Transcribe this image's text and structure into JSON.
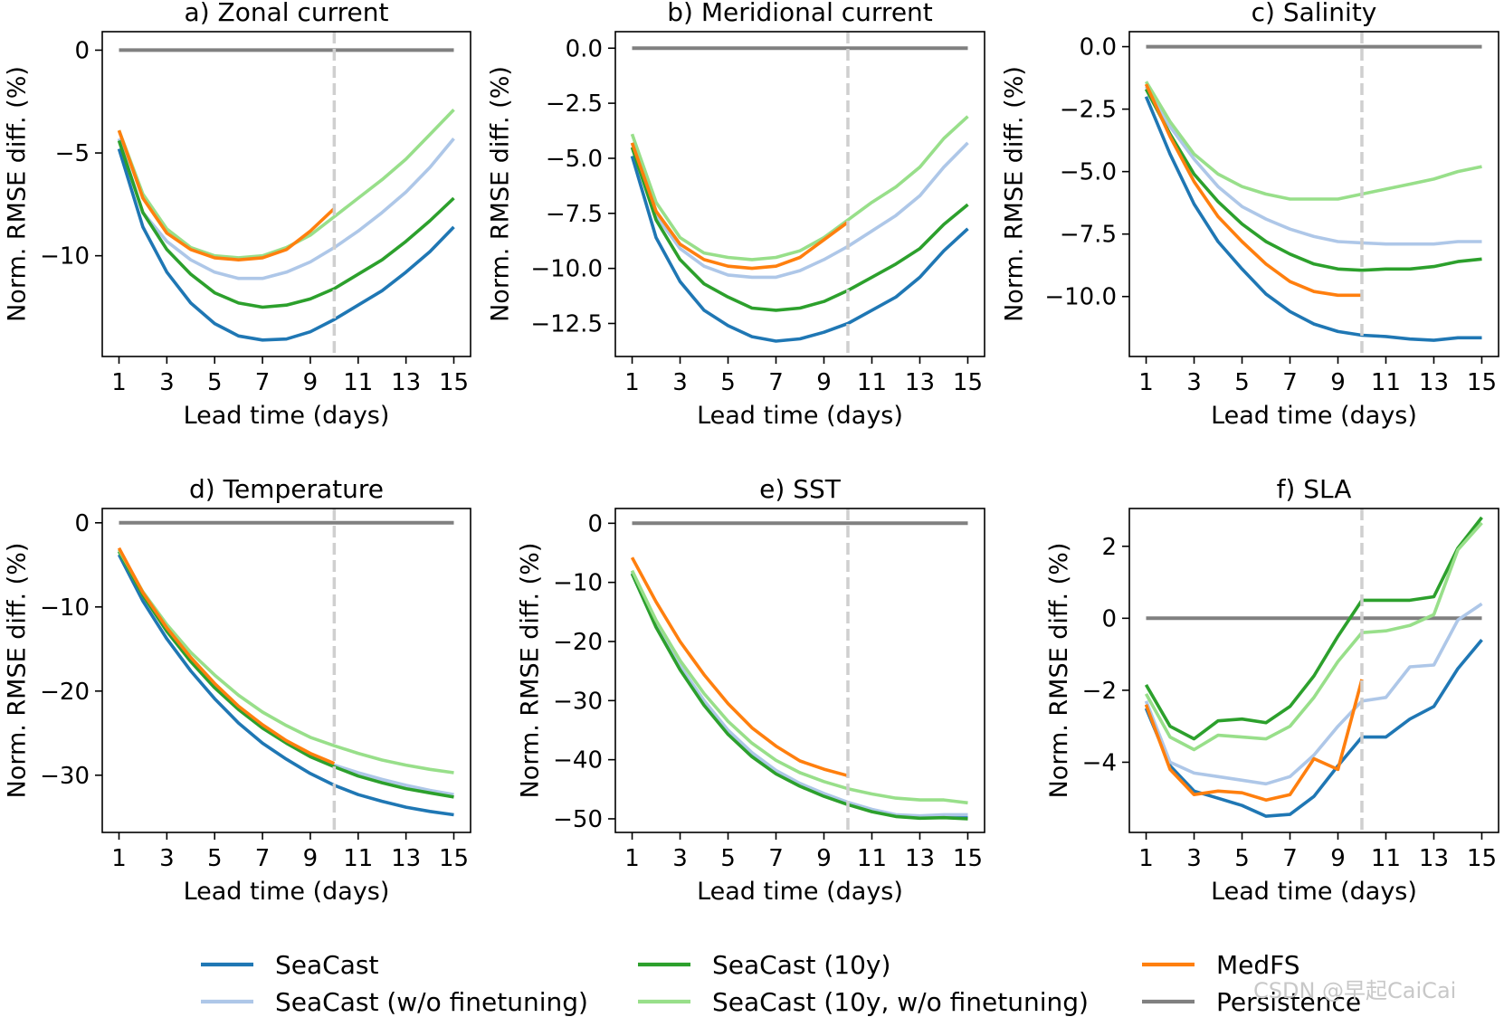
{
  "chart_data": {
    "type": "line",
    "x": [
      1,
      2,
      3,
      4,
      5,
      6,
      7,
      8,
      9,
      10,
      11,
      12,
      13,
      14,
      15
    ],
    "xlabel": "Lead time (days)",
    "ylabel": "Norm. RMSE diff. (%)",
    "xticks": [
      1,
      3,
      5,
      7,
      9,
      11,
      13,
      15
    ],
    "xlim": [
      0.3,
      15.7
    ],
    "vline_x": 10,
    "series_styles": {
      "seacast": {
        "name": "SeaCast",
        "color": "#1f77b4"
      },
      "seacast_wof": {
        "name": "SeaCast (w/o finetuning)",
        "color": "#aec7e8"
      },
      "seacast10y": {
        "name": "SeaCast (10y)",
        "color": "#2ca02c"
      },
      "seacast10y_wof": {
        "name": "SeaCast (10y, w/o finetuning)",
        "color": "#98df8a"
      },
      "medfs": {
        "name": "MedFS",
        "color": "#ff7f0e"
      },
      "persistence": {
        "name": "Persistence",
        "color": "#808080"
      }
    },
    "legend_order": [
      "seacast",
      "seacast_wof",
      "seacast10y",
      "seacast10y_wof",
      "medfs",
      "persistence"
    ],
    "panels": [
      {
        "title": "a) Zonal current",
        "ylim": [
          -14.9,
          0.9
        ],
        "yticks": [
          0,
          -5,
          -10
        ],
        "ytick_labels": [
          "0",
          "−5",
          "−10"
        ],
        "series": {
          "persistence": [
            0,
            0,
            0,
            0,
            0,
            0,
            0,
            0,
            0,
            0,
            0,
            0,
            0,
            0,
            0
          ],
          "seacast": [
            -4.8,
            -8.6,
            -10.8,
            -12.3,
            -13.3,
            -13.9,
            -14.1,
            -14.05,
            -13.7,
            -13.1,
            -12.4,
            -11.7,
            -10.8,
            -9.8,
            -8.6
          ],
          "seacast_wof": [
            -4.3,
            -7.9,
            -9.3,
            -10.2,
            -10.8,
            -11.1,
            -11.1,
            -10.8,
            -10.3,
            -9.6,
            -8.8,
            -7.9,
            -6.9,
            -5.7,
            -4.3
          ],
          "seacast10y": [
            -4.4,
            -7.9,
            -9.7,
            -10.9,
            -11.8,
            -12.3,
            -12.5,
            -12.4,
            -12.1,
            -11.6,
            -10.9,
            -10.2,
            -9.3,
            -8.3,
            -7.2
          ],
          "seacast10y_wof": [
            -3.9,
            -7.0,
            -8.7,
            -9.6,
            -10.0,
            -10.1,
            -10.0,
            -9.6,
            -9.0,
            -8.1,
            -7.2,
            -6.3,
            -5.3,
            -4.1,
            -2.9
          ],
          "medfs": [
            -3.9,
            -7.2,
            -8.9,
            -9.7,
            -10.1,
            -10.2,
            -10.1,
            -9.7,
            -8.8,
            -7.7
          ]
        }
      },
      {
        "title": "b) Meridional current",
        "ylim": [
          -14.0,
          0.75
        ],
        "yticks": [
          0,
          -2.5,
          -5,
          -7.5,
          -10,
          -12.5
        ],
        "ytick_labels": [
          "0.0",
          "−2.5",
          "−5.0",
          "−7.5",
          "−10.0",
          "−12.5"
        ],
        "series": {
          "persistence": [
            0,
            0,
            0,
            0,
            0,
            0,
            0,
            0,
            0,
            0,
            0,
            0,
            0,
            0,
            0
          ],
          "seacast": [
            -4.9,
            -8.6,
            -10.6,
            -11.9,
            -12.6,
            -13.1,
            -13.3,
            -13.2,
            -12.9,
            -12.5,
            -11.9,
            -11.3,
            -10.4,
            -9.2,
            -8.2
          ],
          "seacast_wof": [
            -4.3,
            -7.6,
            -9.1,
            -9.9,
            -10.3,
            -10.4,
            -10.4,
            -10.1,
            -9.6,
            -9.0,
            -8.3,
            -7.6,
            -6.7,
            -5.4,
            -4.3
          ],
          "seacast10y": [
            -4.5,
            -7.8,
            -9.6,
            -10.7,
            -11.3,
            -11.8,
            -11.9,
            -11.8,
            -11.5,
            -11.0,
            -10.4,
            -9.8,
            -9.1,
            -8.0,
            -7.1
          ],
          "seacast10y_wof": [
            -3.9,
            -7.0,
            -8.6,
            -9.3,
            -9.5,
            -9.6,
            -9.5,
            -9.2,
            -8.6,
            -7.8,
            -7.0,
            -6.3,
            -5.4,
            -4.1,
            -3.1
          ],
          "medfs": [
            -4.3,
            -7.4,
            -8.9,
            -9.6,
            -9.9,
            -10.0,
            -9.9,
            -9.5,
            -8.7,
            -7.9
          ]
        }
      },
      {
        "title": "c) Salinity",
        "ylim": [
          -12.4,
          0.6
        ],
        "yticks": [
          0,
          -2.5,
          -5,
          -7.5,
          -10
        ],
        "ytick_labels": [
          "0.0",
          "−2.5",
          "−5.0",
          "−7.5",
          "−10.0"
        ],
        "series": {
          "persistence": [
            0,
            0,
            0,
            0,
            0,
            0,
            0,
            0,
            0,
            0,
            0,
            0,
            0,
            0,
            0
          ],
          "seacast": [
            -2.0,
            -4.3,
            -6.3,
            -7.8,
            -8.9,
            -9.9,
            -10.6,
            -11.1,
            -11.4,
            -11.55,
            -11.6,
            -11.7,
            -11.75,
            -11.65,
            -11.65
          ],
          "seacast_wof": [
            -1.6,
            -3.2,
            -4.5,
            -5.6,
            -6.4,
            -6.9,
            -7.3,
            -7.6,
            -7.8,
            -7.85,
            -7.9,
            -7.9,
            -7.9,
            -7.8,
            -7.8
          ],
          "seacast10y": [
            -1.7,
            -3.5,
            -5.1,
            -6.2,
            -7.1,
            -7.8,
            -8.3,
            -8.7,
            -8.9,
            -8.95,
            -8.9,
            -8.9,
            -8.8,
            -8.6,
            -8.5
          ],
          "seacast10y_wof": [
            -1.4,
            -3.0,
            -4.3,
            -5.1,
            -5.6,
            -5.9,
            -6.1,
            -6.1,
            -6.1,
            -5.9,
            -5.7,
            -5.5,
            -5.3,
            -5.0,
            -4.8
          ],
          "medfs": [
            -1.5,
            -3.6,
            -5.4,
            -6.8,
            -7.8,
            -8.7,
            -9.4,
            -9.8,
            -9.95,
            -9.95
          ]
        }
      },
      {
        "title": "d) Temperature",
        "ylim": [
          -36.8,
          1.7
        ],
        "yticks": [
          0,
          -10,
          -20,
          -30
        ],
        "ytick_labels": [
          "0",
          "−10",
          "−20",
          "−30"
        ],
        "series": {
          "persistence": [
            0,
            0,
            0,
            0,
            0,
            0,
            0,
            0,
            0,
            0,
            0,
            0,
            0,
            0,
            0
          ],
          "seacast": [
            -3.8,
            -9.3,
            -13.8,
            -17.6,
            -20.9,
            -23.8,
            -26.2,
            -28.1,
            -29.8,
            -31.2,
            -32.3,
            -33.1,
            -33.8,
            -34.3,
            -34.7
          ],
          "seacast_wof": [
            -3.4,
            -8.6,
            -12.9,
            -16.4,
            -19.4,
            -22.0,
            -24.2,
            -26.0,
            -27.5,
            -28.8,
            -29.7,
            -30.5,
            -31.2,
            -31.8,
            -32.3
          ],
          "seacast10y": [
            -3.4,
            -8.6,
            -12.9,
            -16.5,
            -19.6,
            -22.2,
            -24.4,
            -26.2,
            -27.8,
            -29.0,
            -30.1,
            -30.9,
            -31.6,
            -32.1,
            -32.6
          ],
          "seacast10y_wof": [
            -3.2,
            -8.2,
            -12.1,
            -15.4,
            -18.1,
            -20.5,
            -22.5,
            -24.1,
            -25.5,
            -26.5,
            -27.4,
            -28.2,
            -28.8,
            -29.3,
            -29.7
          ],
          "medfs": [
            -3.0,
            -8.3,
            -12.5,
            -16.0,
            -19.1,
            -21.8,
            -24.0,
            -25.9,
            -27.4,
            -28.6
          ]
        }
      },
      {
        "title": "e) SST",
        "ylim": [
          -52.3,
          2.5
        ],
        "yticks": [
          0,
          -10,
          -20,
          -30,
          -40,
          -50
        ],
        "ytick_labels": [
          "0",
          "−10",
          "−20",
          "−30",
          "−40",
          "−50"
        ],
        "series": {
          "persistence": [
            0,
            0,
            0,
            0,
            0,
            0,
            0,
            0,
            0,
            0,
            0,
            0,
            0,
            0,
            0
          ],
          "seacast": [
            -8.5,
            -17.5,
            -24.7,
            -30.6,
            -35.5,
            -39.3,
            -42.2,
            -44.3,
            -46.0,
            -47.4,
            -48.6,
            -49.5,
            -49.8,
            -49.7,
            -49.7
          ],
          "seacast_wof": [
            -8.2,
            -17.0,
            -24.1,
            -30.0,
            -35.0,
            -38.8,
            -41.8,
            -44.0,
            -45.7,
            -47.2,
            -48.4,
            -49.3,
            -49.5,
            -49.3,
            -49.3
          ],
          "seacast10y": [
            -8.5,
            -17.6,
            -24.8,
            -30.8,
            -35.7,
            -39.5,
            -42.4,
            -44.5,
            -46.2,
            -47.6,
            -48.8,
            -49.6,
            -49.9,
            -49.8,
            -50.0
          ],
          "seacast10y_wof": [
            -8.0,
            -16.4,
            -23.2,
            -28.8,
            -33.5,
            -37.2,
            -40.1,
            -42.2,
            -43.7,
            -44.9,
            -45.8,
            -46.5,
            -46.8,
            -46.8,
            -47.3
          ],
          "medfs": [
            -5.8,
            -13.3,
            -20.0,
            -25.6,
            -30.5,
            -34.6,
            -37.7,
            -40.2,
            -41.6,
            -42.7
          ]
        }
      },
      {
        "title": "f) SLA",
        "ylim": [
          -5.95,
          3.05
        ],
        "yticks": [
          2,
          0,
          -2,
          -4
        ],
        "ytick_labels": [
          "2",
          "0",
          "−2",
          "−4"
        ],
        "series": {
          "persistence": [
            0,
            0,
            0,
            0,
            0,
            0,
            0,
            0,
            0,
            0,
            0,
            0,
            0,
            0,
            0
          ],
          "seacast": [
            -2.5,
            -4.1,
            -4.8,
            -5.0,
            -5.2,
            -5.5,
            -5.45,
            -4.95,
            -4.1,
            -3.3,
            -3.3,
            -2.8,
            -2.45,
            -1.4,
            -0.6
          ],
          "seacast_wof": [
            -2.3,
            -4.0,
            -4.3,
            -4.4,
            -4.5,
            -4.6,
            -4.4,
            -3.8,
            -3.0,
            -2.3,
            -2.2,
            -1.35,
            -1.3,
            -0.05,
            0.4
          ],
          "seacast10y": [
            -1.85,
            -3.0,
            -3.35,
            -2.85,
            -2.8,
            -2.9,
            -2.45,
            -1.6,
            -0.5,
            0.5,
            0.5,
            0.5,
            0.6,
            1.95,
            2.8
          ],
          "seacast10y_wof": [
            -2.1,
            -3.3,
            -3.65,
            -3.25,
            -3.3,
            -3.35,
            -3.0,
            -2.2,
            -1.2,
            -0.4,
            -0.35,
            -0.2,
            0.1,
            1.9,
            2.65
          ],
          "medfs": [
            -2.4,
            -4.2,
            -4.9,
            -4.8,
            -4.85,
            -5.05,
            -4.9,
            -3.9,
            -4.2,
            -1.7
          ]
        }
      }
    ]
  },
  "watermark": "CSDN @早起CaiCai"
}
